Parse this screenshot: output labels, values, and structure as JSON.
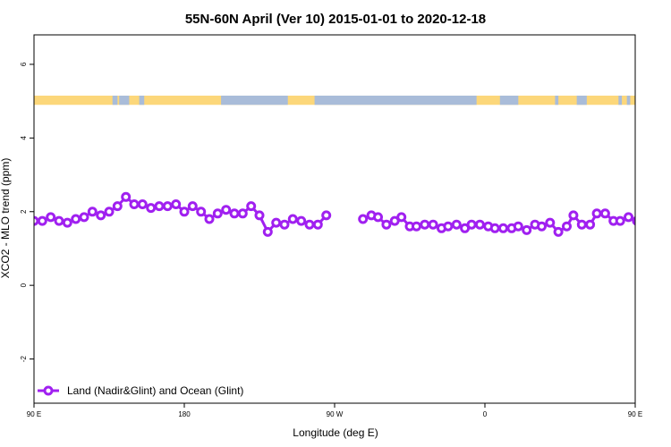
{
  "chart_data": {
    "type": "line",
    "title": "55N-60N April (Ver 10)   2015-01-01 to 2020-12-18",
    "xlabel": "Longitude (deg E)",
    "ylabel": "XCO2 - MLO trend (ppm)",
    "xlim": [
      90,
      450
    ],
    "ylim": [
      -3.2,
      6.8
    ],
    "x_ticks": [
      {
        "value": 90,
        "label": "90 E"
      },
      {
        "value": 180,
        "label": "180"
      },
      {
        "value": 270,
        "label": "90 W"
      },
      {
        "value": 360,
        "label": "0"
      },
      {
        "value": 450,
        "label": "90 E"
      },
      {
        "value": 540,
        "label": "180"
      }
    ],
    "y_ticks": [
      {
        "value": -2,
        "label": "-2"
      },
      {
        "value": 0,
        "label": "0"
      },
      {
        "value": 2,
        "label": "2"
      },
      {
        "value": 4,
        "label": "4"
      },
      {
        "value": 6,
        "label": "6"
      }
    ],
    "grid": false,
    "legend_position": "bottom-left",
    "colors": {
      "series": "#a020f0",
      "land": "#fcd77a",
      "ocean": "#a9bcd9",
      "axes": "#000000"
    },
    "landmask": {
      "y_bottom": 4.9,
      "y_top": 5.15,
      "ocean_ranges": [
        [
          137,
          140
        ],
        [
          141,
          147
        ],
        [
          153,
          156
        ],
        [
          202,
          242
        ],
        [
          258,
          355
        ],
        [
          369,
          380
        ],
        [
          402,
          404
        ],
        [
          415,
          421
        ],
        [
          440,
          442
        ],
        [
          445,
          447
        ]
      ]
    },
    "series": [
      {
        "name": "Land (Nadir&Glint) and Ocean (Glint)",
        "color": "#a020f0",
        "segments": [
          {
            "x": [
              90,
              95,
              100,
              105,
              110,
              115,
              120,
              125,
              130,
              135,
              140,
              145,
              150,
              155,
              160,
              165,
              170,
              175,
              180,
              185,
              190,
              195,
              200,
              205,
              210,
              215,
              220,
              225,
              230,
              235,
              240,
              245,
              250,
              255,
              260,
              265,
              270
            ],
            "y": [
              1.75,
              1.75,
              1.85,
              1.75,
              1.7,
              1.8,
              1.85,
              2.0,
              1.9,
              2.0,
              2.15,
              2.4,
              2.2,
              2.2,
              2.1,
              2.15,
              2.15,
              2.2,
              2.0,
              2.15,
              2.0,
              1.8,
              1.95,
              2.05,
              1.95,
              1.95,
              2.15,
              1.9,
              1.45,
              1.7,
              1.65,
              1.8,
              1.75,
              1.65,
              1.65,
              1.9,
              null
            ]
          },
          {
            "x": [
              287,
              292,
              296,
              301,
              306,
              310,
              315,
              319,
              324,
              329,
              334,
              338,
              343,
              348,
              352,
              357,
              362,
              366,
              371,
              376,
              380,
              385,
              390,
              394,
              399,
              404,
              409,
              413,
              418,
              423,
              427,
              432,
              437,
              441,
              446,
              451,
              455,
              460,
              465,
              469,
              474,
              479,
              483,
              488,
              493,
              497,
              502,
              506,
              511,
              516,
              520,
              525,
              530,
              534,
              539,
              543
            ],
            "y": [
              1.8,
              1.9,
              1.85,
              1.65,
              1.75,
              1.85,
              1.6,
              1.6,
              1.65,
              1.65,
              1.55,
              1.6,
              1.65,
              1.55,
              1.65,
              1.65,
              1.6,
              1.55,
              1.55,
              1.55,
              1.6,
              1.5,
              1.65,
              1.6,
              1.7,
              1.45,
              1.6,
              1.9,
              1.65,
              1.65,
              1.95,
              1.95,
              1.75,
              1.75,
              1.85,
              1.75,
              1.7,
              1.8,
              1.85,
              2.0,
              1.9,
              2.0,
              2.15,
              2.4,
              2.2,
              2.2,
              2.1,
              2.15,
              2.15,
              2.2,
              2.0,
              2.15,
              2.0,
              1.8,
              1.95,
              2.05
            ]
          }
        ]
      }
    ]
  }
}
